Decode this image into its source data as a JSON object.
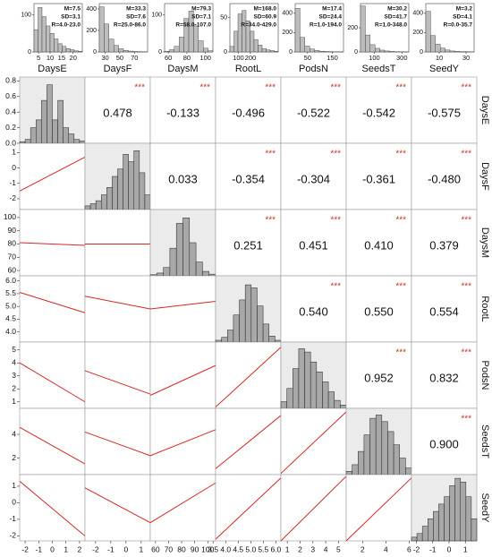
{
  "chart_data": {
    "type": "pairs",
    "variables": [
      "DaysE",
      "DaysF",
      "DaysM",
      "RootL",
      "PodsN",
      "SeedsT",
      "SeedY"
    ],
    "top_hists": [
      {
        "stats": [
          "M=7.5",
          "SD=3.1",
          "R=4.0-23.0"
        ],
        "xlim": [
          3,
          24
        ],
        "xticks": [
          5,
          10,
          15,
          20
        ],
        "ylim": [
          0,
          130
        ],
        "yticks": [
          0,
          100
        ],
        "counts": [
          60,
          120,
          95,
          70,
          50,
          35,
          22,
          15,
          9,
          6,
          3,
          2
        ]
      },
      {
        "stats": [
          "M=33.3",
          "SD=7.6",
          "R=25.0-86.0"
        ],
        "xlim": [
          22,
          88
        ],
        "xticks": [
          30,
          50,
          70
        ],
        "ylim": [
          0,
          450
        ],
        "yticks": [
          0,
          200,
          400
        ],
        "counts": [
          420,
          260,
          120,
          60,
          30,
          15,
          8,
          4,
          2,
          1
        ]
      },
      {
        "stats": [
          "M=79.3",
          "SD=7.1",
          "R=58.0-107.0"
        ],
        "xlim": [
          56,
          108
        ],
        "xticks": [
          60,
          80,
          100
        ],
        "ylim": [
          0,
          130
        ],
        "yticks": [
          0,
          100
        ],
        "counts": [
          2,
          6,
          15,
          40,
          90,
          110,
          70,
          30,
          10,
          3
        ]
      },
      {
        "stats": [
          "M=168.0",
          "SD=60.9",
          "R=34.0-429.0"
        ],
        "xlim": [
          30,
          430
        ],
        "xticks": [
          100,
          200
        ],
        "ylim": [
          0,
          70
        ],
        "yticks": [
          0,
          50
        ],
        "counts": [
          8,
          30,
          55,
          60,
          45,
          30,
          18,
          10,
          5,
          3,
          2,
          1
        ]
      },
      {
        "stats": [
          "M=17.4",
          "SD=24.4",
          "R=1.0-194.0"
        ],
        "xlim": [
          0,
          195
        ],
        "xticks": [
          50,
          150
        ],
        "ylim": [
          0,
          500
        ],
        "yticks": [
          0,
          200,
          400
        ],
        "counts": [
          450,
          150,
          60,
          30,
          15,
          8,
          4,
          2,
          1,
          1
        ]
      },
      {
        "stats": [
          "M=30.2",
          "SD=41.7",
          "R=1.0-348.0"
        ],
        "xlim": [
          0,
          350
        ],
        "xticks": [
          100,
          300
        ],
        "ylim": [
          0,
          400
        ],
        "yticks": [
          0,
          200
        ],
        "counts": [
          380,
          140,
          60,
          30,
          15,
          8,
          4,
          2,
          1,
          1
        ]
      },
      {
        "stats": [
          "M=3.2",
          "SD=4.1",
          "R=0.0-35.7"
        ],
        "xlim": [
          0,
          36
        ],
        "xticks": [
          10,
          30
        ],
        "ylim": [
          0,
          500
        ],
        "yticks": [
          0,
          200,
          400
        ],
        "counts": [
          420,
          170,
          80,
          40,
          20,
          10,
          5,
          3,
          2,
          1
        ]
      }
    ],
    "ranges": [
      [
        -2.4,
        2.4
      ],
      [
        -2.7,
        1.6
      ],
      [
        56,
        106
      ],
      [
        3.6,
        6.2
      ],
      [
        0.5,
        5.6
      ],
      [
        0.6,
        6.2
      ],
      [
        -2.3,
        1.7
      ]
    ],
    "xticks": [
      [
        -2,
        -1,
        0,
        1,
        2
      ],
      [
        -2,
        -1,
        0,
        1
      ],
      [
        60,
        70,
        80,
        90,
        100
      ],
      [
        {
          "value": 3.5,
          "label": "3.5"
        },
        {
          "value": 4,
          "label": "4.0"
        },
        {
          "value": 4.5,
          "label": "4.5"
        },
        {
          "value": 5,
          "label": "5.0"
        },
        {
          "value": 5.5,
          "label": "5.5"
        },
        {
          "value": 6,
          "label": "6.0"
        }
      ],
      [
        1,
        2,
        3,
        4,
        5
      ],
      [
        2,
        4,
        6
      ],
      [
        -2,
        -1,
        0,
        1
      ]
    ],
    "yticks": [
      [
        {
          "value": 0,
          "label": "0.0"
        },
        {
          "value": 0.2,
          "label": "0.2"
        },
        {
          "value": 0.4,
          "label": "0.4"
        },
        {
          "value": 0.6,
          "label": "0.6"
        },
        {
          "value": 0.8,
          "label": "0.8"
        }
      ],
      [
        -2,
        -1,
        0,
        1
      ],
      [
        60,
        70,
        80,
        90,
        100
      ],
      [
        {
          "value": 4,
          "label": "4.0"
        },
        {
          "value": 4.5,
          "label": "4.5"
        },
        {
          "value": 5,
          "label": "5.0"
        },
        {
          "value": 5.5,
          "label": "5.5"
        },
        {
          "value": 6,
          "label": "6.0"
        }
      ],
      [
        1,
        2,
        3,
        4,
        5
      ],
      [
        2,
        4
      ],
      [
        -2,
        -1,
        0,
        1
      ]
    ],
    "diag_ylim": [
      [
        0,
        0.85
      ],
      [
        0,
        90
      ],
      [
        0,
        120
      ],
      [
        0,
        110
      ],
      [
        0,
        100
      ],
      [
        0,
        100
      ],
      [
        0,
        90
      ]
    ],
    "diag_hists": [
      [
        0.02,
        0.05,
        0.2,
        0.3,
        0.55,
        0.75,
        0.3,
        0.55,
        0.2,
        0.12,
        0.05,
        0.03
      ],
      [
        5,
        8,
        12,
        20,
        30,
        45,
        55,
        75,
        65,
        80,
        50,
        20
      ],
      [
        2,
        5,
        15,
        50,
        95,
        105,
        60,
        25,
        8,
        3
      ],
      [
        3,
        8,
        20,
        45,
        70,
        95,
        90,
        60,
        30,
        10,
        3
      ],
      [
        10,
        30,
        60,
        90,
        85,
        70,
        55,
        40,
        25,
        12,
        5
      ],
      [
        5,
        15,
        35,
        60,
        85,
        90,
        80,
        65,
        45,
        25,
        10
      ],
      [
        5,
        10,
        20,
        30,
        40,
        50,
        60,
        75,
        85,
        80,
        60,
        30
      ]
    ],
    "correlations": [
      [
        null,
        "0.478",
        "-0.133",
        "-0.496",
        "-0.522",
        "-0.542",
        "-0.575"
      ],
      [
        null,
        null,
        "0.033",
        "-0.354",
        "-0.304",
        "-0.361",
        "-0.480"
      ],
      [
        null,
        null,
        null,
        "0.251",
        "0.451",
        "0.410",
        "0.379"
      ],
      [
        null,
        null,
        null,
        null,
        "0.540",
        "0.550",
        "0.554"
      ],
      [
        null,
        null,
        null,
        null,
        null,
        "0.952",
        "0.832"
      ],
      [
        null,
        null,
        null,
        null,
        null,
        null,
        "0.900"
      ]
    ],
    "stars": [
      [
        null,
        "***",
        "***",
        "***",
        "***",
        "***",
        "***"
      ],
      [
        null,
        null,
        null,
        "***",
        "***",
        "***",
        "***"
      ],
      [
        null,
        null,
        null,
        "***",
        "***",
        "***",
        "***"
      ],
      [
        null,
        null,
        null,
        null,
        "***",
        "***",
        "***"
      ],
      [
        null,
        null,
        null,
        null,
        null,
        "***",
        "***"
      ],
      [
        null,
        null,
        null,
        null,
        null,
        null,
        "***"
      ]
    ],
    "fits": [
      [],
      [
        [
          -1.5,
          0.7
        ]
      ],
      [
        [
          81,
          79
        ],
        [
          80,
          80
        ]
      ],
      [
        [
          5.55,
          4.75
        ],
        [
          5.4,
          4.9
        ],
        [
          4.9,
          5.2
        ]
      ],
      [
        [
          4.0,
          1.0
        ],
        [
          3.4,
          1.6
        ],
        [
          1.5,
          3.8
        ],
        [
          0.6,
          5.2
        ]
      ],
      [
        [
          4.6,
          1.5
        ],
        [
          4.2,
          2.2
        ],
        [
          2.2,
          4.4
        ],
        [
          1.1,
          5.6
        ],
        [
          0.7,
          5.9
        ]
      ],
      [
        [
          1.3,
          -2.0
        ],
        [
          0.9,
          -1.2
        ],
        [
          -1.2,
          1.2
        ],
        [
          -2.2,
          1.5
        ],
        [
          -2.3,
          1.6
        ],
        [
          -2.3,
          1.5
        ]
      ]
    ]
  }
}
